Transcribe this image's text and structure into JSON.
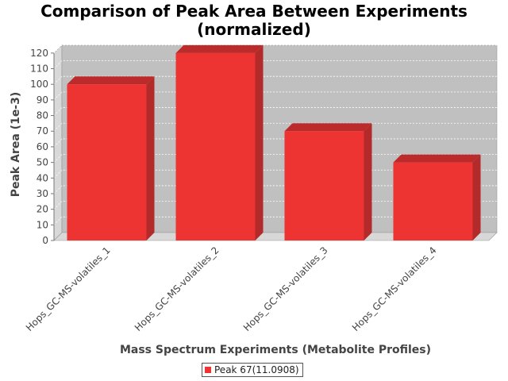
{
  "chart_data": {
    "type": "bar",
    "title_lines": [
      "Comparison of Peak Area Between Experiments",
      "(normalized)"
    ],
    "xlabel": "Mass Spectrum Experiments (Metabolite Profiles)",
    "ylabel": "Peak Area (1e-3)",
    "categories": [
      "Hops_GC-MS-volatiles_1",
      "Hops_GC-MS-volatiles_2",
      "Hops_GC-MS-volatiles_3",
      "Hops_GC-MS-volatiles_4"
    ],
    "series": [
      {
        "name": "Peak 67(11.0908)",
        "values": [
          100,
          120,
          70,
          50
        ]
      }
    ],
    "ylim": [
      0,
      125
    ],
    "yticks": [
      0,
      10,
      20,
      30,
      40,
      50,
      60,
      70,
      80,
      90,
      100,
      110,
      120
    ],
    "grid": true,
    "three_d": true,
    "legend_position": "bottom-center",
    "bar_color": "#ee3333",
    "plot_background": "#c0c0c0"
  }
}
